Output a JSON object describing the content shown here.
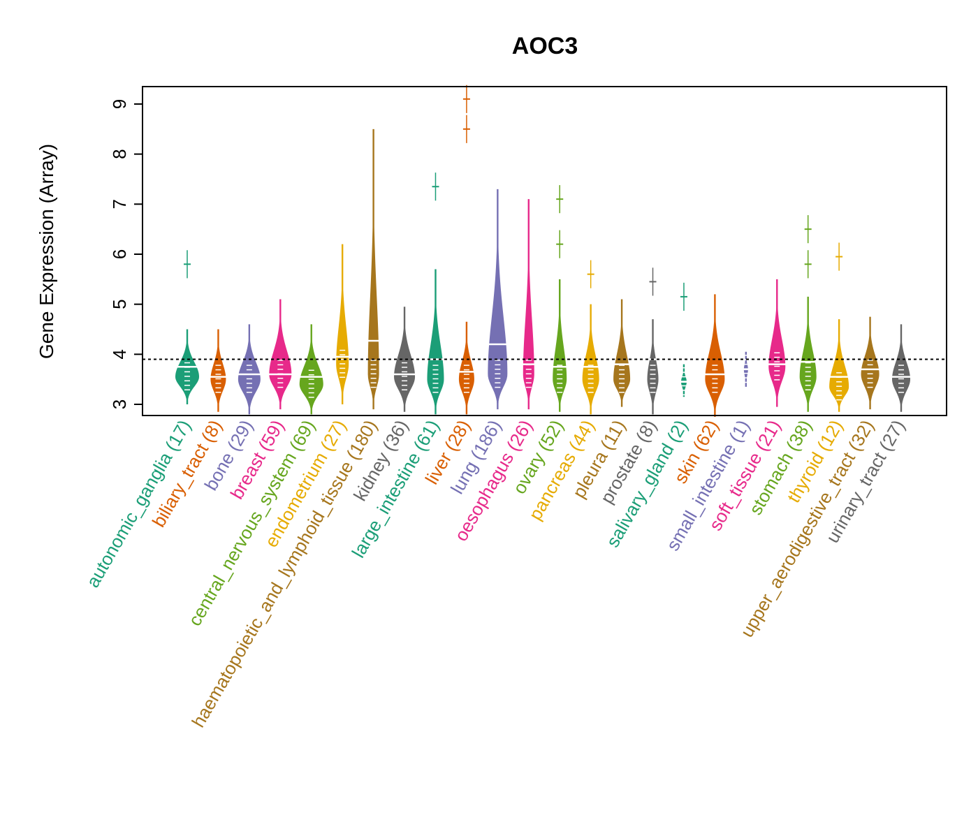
{
  "chart_data": {
    "type": "beanplot",
    "title": "AOC3",
    "ylabel": "Gene Expression (Array)",
    "xlabel": "",
    "ylim": [
      2.78,
      9.35
    ],
    "yticks": [
      3,
      4,
      5,
      6,
      7,
      8,
      9
    ],
    "reference_line": 3.9,
    "palette": [
      "#1B9E77",
      "#D95F02",
      "#7570B3",
      "#E7298A",
      "#66A61E",
      "#E6AB02",
      "#A6761D",
      "#666666"
    ],
    "categories": [
      {
        "label": "autonomic_ganglia (17)",
        "min": 3.0,
        "max": 4.5,
        "mode": 3.55,
        "width": 17,
        "median": 3.75,
        "outliers": [
          5.8
        ]
      },
      {
        "label": "biliary_tract (8)",
        "min": 2.85,
        "max": 4.5,
        "mode": 3.5,
        "width": 11,
        "median": 3.55,
        "outliers": []
      },
      {
        "label": "bone (29)",
        "min": 2.8,
        "max": 4.6,
        "mode": 3.5,
        "width": 16,
        "median": 3.6,
        "outliers": []
      },
      {
        "label": "breast (59)",
        "min": 2.9,
        "max": 5.1,
        "mode": 3.6,
        "width": 16,
        "median": 3.6,
        "outliers": []
      },
      {
        "label": "central_nervous_system (69)",
        "min": 2.8,
        "max": 4.6,
        "mode": 3.4,
        "width": 17,
        "median": 3.55,
        "outliers": []
      },
      {
        "label": "endometrium (27)",
        "min": 3.0,
        "max": 6.2,
        "mode": 3.8,
        "width": 9,
        "median": 3.95,
        "outliers": []
      },
      {
        "label": "haematopoietic_and_lymphoid_tissue (180)",
        "min": 2.9,
        "max": 8.5,
        "mode": 3.6,
        "width": 8,
        "median": 4.27,
        "outliers": []
      },
      {
        "label": "kidney (36)",
        "min": 2.85,
        "max": 4.95,
        "mode": 3.55,
        "width": 15,
        "median": 3.6,
        "outliers": []
      },
      {
        "label": "large_intestine (61)",
        "min": 2.8,
        "max": 5.7,
        "mode": 3.5,
        "width": 12,
        "median": 3.9,
        "outliers": [
          7.35
        ]
      },
      {
        "label": "liver (28)",
        "min": 2.8,
        "max": 4.65,
        "mode": 3.5,
        "width": 11,
        "median": 3.65,
        "outliers": [
          8.5,
          9.1
        ]
      },
      {
        "label": "lung (186)",
        "min": 2.9,
        "max": 7.3,
        "mode": 3.6,
        "width": 14,
        "median": 4.2,
        "outliers": []
      },
      {
        "label": "oesophagus (26)",
        "min": 2.9,
        "max": 7.1,
        "mode": 3.6,
        "width": 8,
        "median": 3.8,
        "outliers": []
      },
      {
        "label": "ovary (52)",
        "min": 2.85,
        "max": 5.5,
        "mode": 3.5,
        "width": 10,
        "median": 3.75,
        "outliers": [
          6.2,
          7.1
        ]
      },
      {
        "label": "pancreas (44)",
        "min": 2.8,
        "max": 5.0,
        "mode": 3.5,
        "width": 12,
        "median": 3.75,
        "outliers": [
          5.6
        ]
      },
      {
        "label": "pleura (11)",
        "min": 2.95,
        "max": 5.1,
        "mode": 3.5,
        "width": 12,
        "median": 3.8,
        "outliers": []
      },
      {
        "label": "prostate (8)",
        "min": 2.8,
        "max": 4.7,
        "mode": 3.5,
        "width": 8,
        "median": 3.9,
        "outliers": [
          5.45
        ]
      },
      {
        "label": "salivary_gland (2)",
        "min": 3.15,
        "max": 3.8,
        "mode": 3.45,
        "width": 4,
        "median": 3.45,
        "outliers": [
          5.15
        ]
      },
      {
        "label": "skin (62)",
        "min": 2.75,
        "max": 5.2,
        "mode": 3.5,
        "width": 14,
        "median": 3.6,
        "outliers": []
      },
      {
        "label": "small_intestine (1)",
        "min": 3.35,
        "max": 4.05,
        "mode": 3.7,
        "width": 3,
        "median": 3.7,
        "outliers": []
      },
      {
        "label": "soft_tissue (21)",
        "min": 2.95,
        "max": 5.5,
        "mode": 3.75,
        "width": 12,
        "median": 3.8,
        "outliers": []
      },
      {
        "label": "stomach (38)",
        "min": 2.85,
        "max": 5.15,
        "mode": 3.55,
        "width": 12,
        "median": 3.85,
        "outliers": [
          5.8,
          6.5
        ]
      },
      {
        "label": "thyroid (12)",
        "min": 2.85,
        "max": 4.7,
        "mode": 3.35,
        "width": 14,
        "median": 3.55,
        "outliers": [
          5.95
        ]
      },
      {
        "label": "upper_aerodigestive_tract (32)",
        "min": 2.9,
        "max": 4.75,
        "mode": 3.6,
        "width": 13,
        "median": 3.7,
        "outliers": []
      },
      {
        "label": "urinary_tract (27)",
        "min": 2.85,
        "max": 4.6,
        "mode": 3.5,
        "width": 13,
        "median": 3.55,
        "outliers": []
      }
    ]
  }
}
